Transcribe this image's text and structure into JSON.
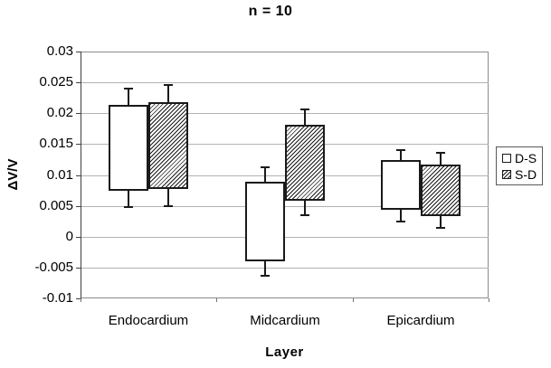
{
  "figure": {
    "background": "#ffffff"
  },
  "chart_data": {
    "type": "bar",
    "subtype": "floating-range-bars-with-error-bars",
    "title": "n = 10",
    "xlabel": "Layer",
    "ylabel": "ΔV/V",
    "categories": [
      "Endocardium",
      "Midcardium",
      "Epicardium"
    ],
    "ylim": [
      -0.01,
      0.03
    ],
    "ytick_step": 0.005,
    "ytick_labels": [
      "0.03",
      "0.025",
      "0.02",
      "0.015",
      "0.01",
      "0.005",
      "0",
      "-0.005",
      "-0.01"
    ],
    "grid": true,
    "legend_position": "right",
    "series": [
      {
        "name": "D-S",
        "fill": "white",
        "bars": [
          {
            "category": "Endocardium",
            "low": 0.0075,
            "high": 0.0213,
            "err_low": 0.0048,
            "err_high": 0.024
          },
          {
            "category": "Midcardium",
            "low": -0.004,
            "high": 0.0089,
            "err_low": -0.0063,
            "err_high": 0.0113
          },
          {
            "category": "Epicardium",
            "low": 0.0043,
            "high": 0.0124,
            "err_low": 0.0025,
            "err_high": 0.0141
          }
        ]
      },
      {
        "name": "S-D",
        "fill": "hatch",
        "bars": [
          {
            "category": "Endocardium",
            "low": 0.0078,
            "high": 0.0218,
            "err_low": 0.005,
            "err_high": 0.0246
          },
          {
            "category": "Midcardium",
            "low": 0.0058,
            "high": 0.0182,
            "err_low": 0.0035,
            "err_high": 0.0206
          },
          {
            "category": "Epicardium",
            "low": 0.0033,
            "high": 0.0117,
            "err_low": 0.0015,
            "err_high": 0.0136
          }
        ]
      }
    ],
    "colors": {
      "bar_border": "#1a1a1a",
      "gridline": "#b3b3b3",
      "plot_border": "#8c8c8c",
      "axis": "#404040",
      "text": "#000000",
      "background": "#ffffff"
    }
  }
}
